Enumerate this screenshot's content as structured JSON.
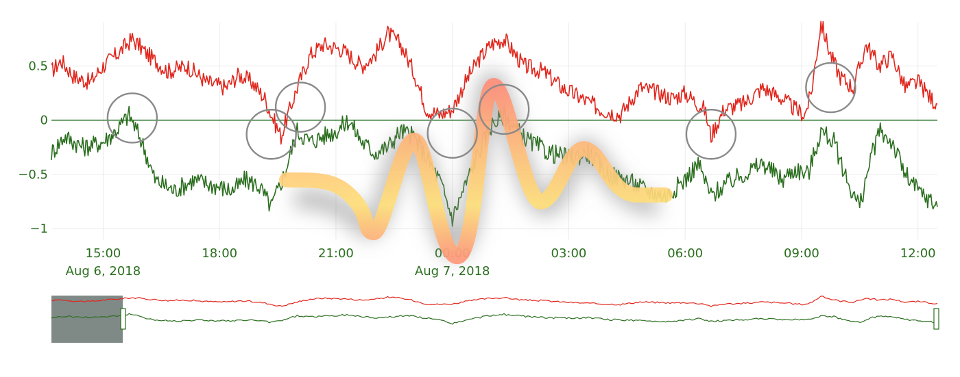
{
  "chart_data": {
    "type": "line",
    "title": "",
    "xlabel": "",
    "ylabel": "",
    "x_range": [
      "2018-08-06T13:40",
      "2018-08-07T12:30"
    ],
    "ylim": [
      -1.1,
      0.9
    ],
    "grid": true,
    "legend": "none",
    "zero_line": {
      "y": 0,
      "color": "#1e6b1e"
    },
    "y_ticks": [
      {
        "value": 0.5,
        "label": "0.5"
      },
      {
        "value": 0,
        "label": "0"
      },
      {
        "value": -0.5,
        "label": "−0.5"
      },
      {
        "value": -1,
        "label": "−1"
      }
    ],
    "x_ticks": [
      {
        "time": "2018-08-06T15:00",
        "label": "15:00",
        "date_label": "Aug 6, 2018"
      },
      {
        "time": "2018-08-06T18:00",
        "label": "18:00",
        "date_label": ""
      },
      {
        "time": "2018-08-06T21:00",
        "label": "21:00",
        "date_label": ""
      },
      {
        "time": "2018-08-07T00:00",
        "label": "00:00",
        "date_label": "Aug 7, 2018"
      },
      {
        "time": "2018-08-07T03:00",
        "label": "03:00",
        "date_label": ""
      },
      {
        "time": "2018-08-07T06:00",
        "label": "06:00",
        "date_label": ""
      },
      {
        "time": "2018-08-07T09:00",
        "label": "09:00",
        "date_label": ""
      },
      {
        "time": "2018-08-07T12:00",
        "label": "12:00",
        "date_label": ""
      }
    ],
    "series": [
      {
        "color": "#e0261c",
        "x": [
          "2018-08-06T13:40",
          "2018-08-06T13:55",
          "2018-08-06T14:15",
          "2018-08-06T14:40",
          "2018-08-06T15:00",
          "2018-08-06T15:20",
          "2018-08-06T15:45",
          "2018-08-06T16:10",
          "2018-08-06T16:40",
          "2018-08-06T17:10",
          "2018-08-06T17:40",
          "2018-08-06T18:10",
          "2018-08-06T18:30",
          "2018-08-06T18:50",
          "2018-08-06T19:10",
          "2018-08-06T19:20",
          "2018-08-06T19:35",
          "2018-08-06T20:00",
          "2018-08-06T20:20",
          "2018-08-06T20:40",
          "2018-08-06T21:10",
          "2018-08-06T21:40",
          "2018-08-06T22:00",
          "2018-08-06T22:20",
          "2018-08-06T22:40",
          "2018-08-06T23:00",
          "2018-08-06T23:20",
          "2018-08-06T23:40",
          "2018-08-07T00:00",
          "2018-08-07T00:20",
          "2018-08-07T00:40",
          "2018-08-07T01:00",
          "2018-08-07T01:20",
          "2018-08-07T01:50",
          "2018-08-07T02:20",
          "2018-08-07T02:50",
          "2018-08-07T03:20",
          "2018-08-07T03:50",
          "2018-08-07T04:20",
          "2018-08-07T04:50",
          "2018-08-07T05:20",
          "2018-08-07T05:40",
          "2018-08-07T06:00",
          "2018-08-07T06:20",
          "2018-08-07T06:30",
          "2018-08-07T06:40",
          "2018-08-07T07:00",
          "2018-08-07T07:30",
          "2018-08-07T08:00",
          "2018-08-07T08:30",
          "2018-08-07T08:50",
          "2018-08-07T09:05",
          "2018-08-07T09:15",
          "2018-08-07T09:30",
          "2018-08-07T09:45",
          "2018-08-07T10:00",
          "2018-08-07T10:20",
          "2018-08-07T10:40",
          "2018-08-07T11:00",
          "2018-08-07T11:20",
          "2018-08-07T11:40",
          "2018-08-07T12:00",
          "2018-08-07T12:20",
          "2018-08-07T12:30"
        ],
        "values": [
          0.45,
          0.55,
          0.4,
          0.35,
          0.5,
          0.6,
          0.75,
          0.6,
          0.45,
          0.5,
          0.35,
          0.3,
          0.42,
          0.35,
          0.2,
          0.05,
          -0.15,
          0.3,
          0.6,
          0.7,
          0.65,
          0.5,
          0.6,
          0.8,
          0.7,
          0.45,
          0.1,
          0.05,
          0.1,
          0.35,
          0.55,
          0.7,
          0.75,
          0.5,
          0.45,
          0.3,
          0.2,
          0.1,
          0.05,
          0.3,
          0.25,
          0.2,
          0.25,
          0.15,
          0.1,
          -0.15,
          0.1,
          0.15,
          0.3,
          0.2,
          0.1,
          0.05,
          0.25,
          0.9,
          0.6,
          0.4,
          0.3,
          0.7,
          0.5,
          0.6,
          0.3,
          0.35,
          0.2,
          0.15
        ]
      },
      {
        "color": "#2a6e1e",
        "x": [
          "2018-08-06T13:40",
          "2018-08-06T14:00",
          "2018-08-06T14:30",
          "2018-08-06T15:00",
          "2018-08-06T15:20",
          "2018-08-06T15:40",
          "2018-08-06T16:00",
          "2018-08-06T16:20",
          "2018-08-06T16:50",
          "2018-08-06T17:20",
          "2018-08-06T17:50",
          "2018-08-06T18:20",
          "2018-08-06T18:40",
          "2018-08-06T19:00",
          "2018-08-06T19:20",
          "2018-08-06T19:40",
          "2018-08-06T20:00",
          "2018-08-06T20:20",
          "2018-08-06T20:40",
          "2018-08-06T21:00",
          "2018-08-06T21:20",
          "2018-08-06T21:40",
          "2018-08-06T22:00",
          "2018-08-06T22:20",
          "2018-08-06T22:40",
          "2018-08-06T23:00",
          "2018-08-06T23:20",
          "2018-08-06T23:40",
          "2018-08-07T00:00",
          "2018-08-07T00:20",
          "2018-08-07T00:40",
          "2018-08-07T01:00",
          "2018-08-07T01:20",
          "2018-08-07T01:40",
          "2018-08-07T02:00",
          "2018-08-07T02:30",
          "2018-08-07T03:00",
          "2018-08-07T03:30",
          "2018-08-07T04:00",
          "2018-08-07T04:30",
          "2018-08-07T05:00",
          "2018-08-07T05:30",
          "2018-08-07T06:00",
          "2018-08-07T06:20",
          "2018-08-07T06:40",
          "2018-08-07T07:00",
          "2018-08-07T07:30",
          "2018-08-07T08:00",
          "2018-08-07T08:30",
          "2018-08-07T08:50",
          "2018-08-07T09:10",
          "2018-08-07T09:30",
          "2018-08-07T09:50",
          "2018-08-07T10:10",
          "2018-08-07T10:30",
          "2018-08-07T10:45",
          "2018-08-07T11:00",
          "2018-08-07T11:20",
          "2018-08-07T11:40",
          "2018-08-07T12:00",
          "2018-08-07T12:20",
          "2018-08-07T12:30"
        ],
        "values": [
          -0.3,
          -0.15,
          -0.25,
          -0.2,
          -0.1,
          0.05,
          -0.2,
          -0.55,
          -0.65,
          -0.55,
          -0.6,
          -0.65,
          -0.55,
          -0.6,
          -0.8,
          -0.5,
          -0.1,
          -0.2,
          -0.15,
          -0.1,
          0.0,
          -0.2,
          -0.3,
          -0.25,
          -0.1,
          -0.15,
          -0.35,
          -0.55,
          -0.9,
          -0.6,
          -0.3,
          -0.05,
          0.05,
          -0.1,
          -0.2,
          -0.3,
          -0.35,
          -0.3,
          -0.5,
          -0.55,
          -0.65,
          -0.7,
          -0.55,
          -0.4,
          -0.7,
          -0.6,
          -0.5,
          -0.4,
          -0.55,
          -0.45,
          -0.5,
          -0.1,
          -0.2,
          -0.55,
          -0.8,
          -0.4,
          -0.1,
          -0.2,
          -0.5,
          -0.65,
          -0.75,
          -0.8
        ]
      }
    ]
  }
}
